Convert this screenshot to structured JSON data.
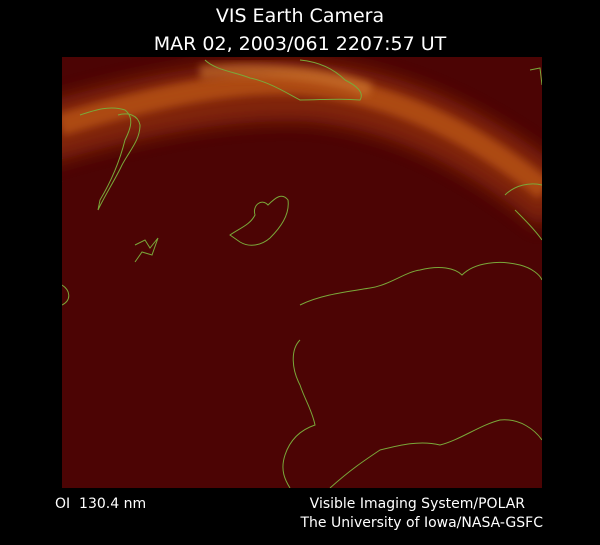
{
  "header": {
    "title": "VIS Earth Camera",
    "timestamp": "MAR 02, 2003/061 2207:57 UT"
  },
  "footer": {
    "filter": "OI  130.4 nm",
    "instrument": "Visible Imaging System/POLAR",
    "institution": "The University of Iowa/NASA-GSFC"
  }
}
